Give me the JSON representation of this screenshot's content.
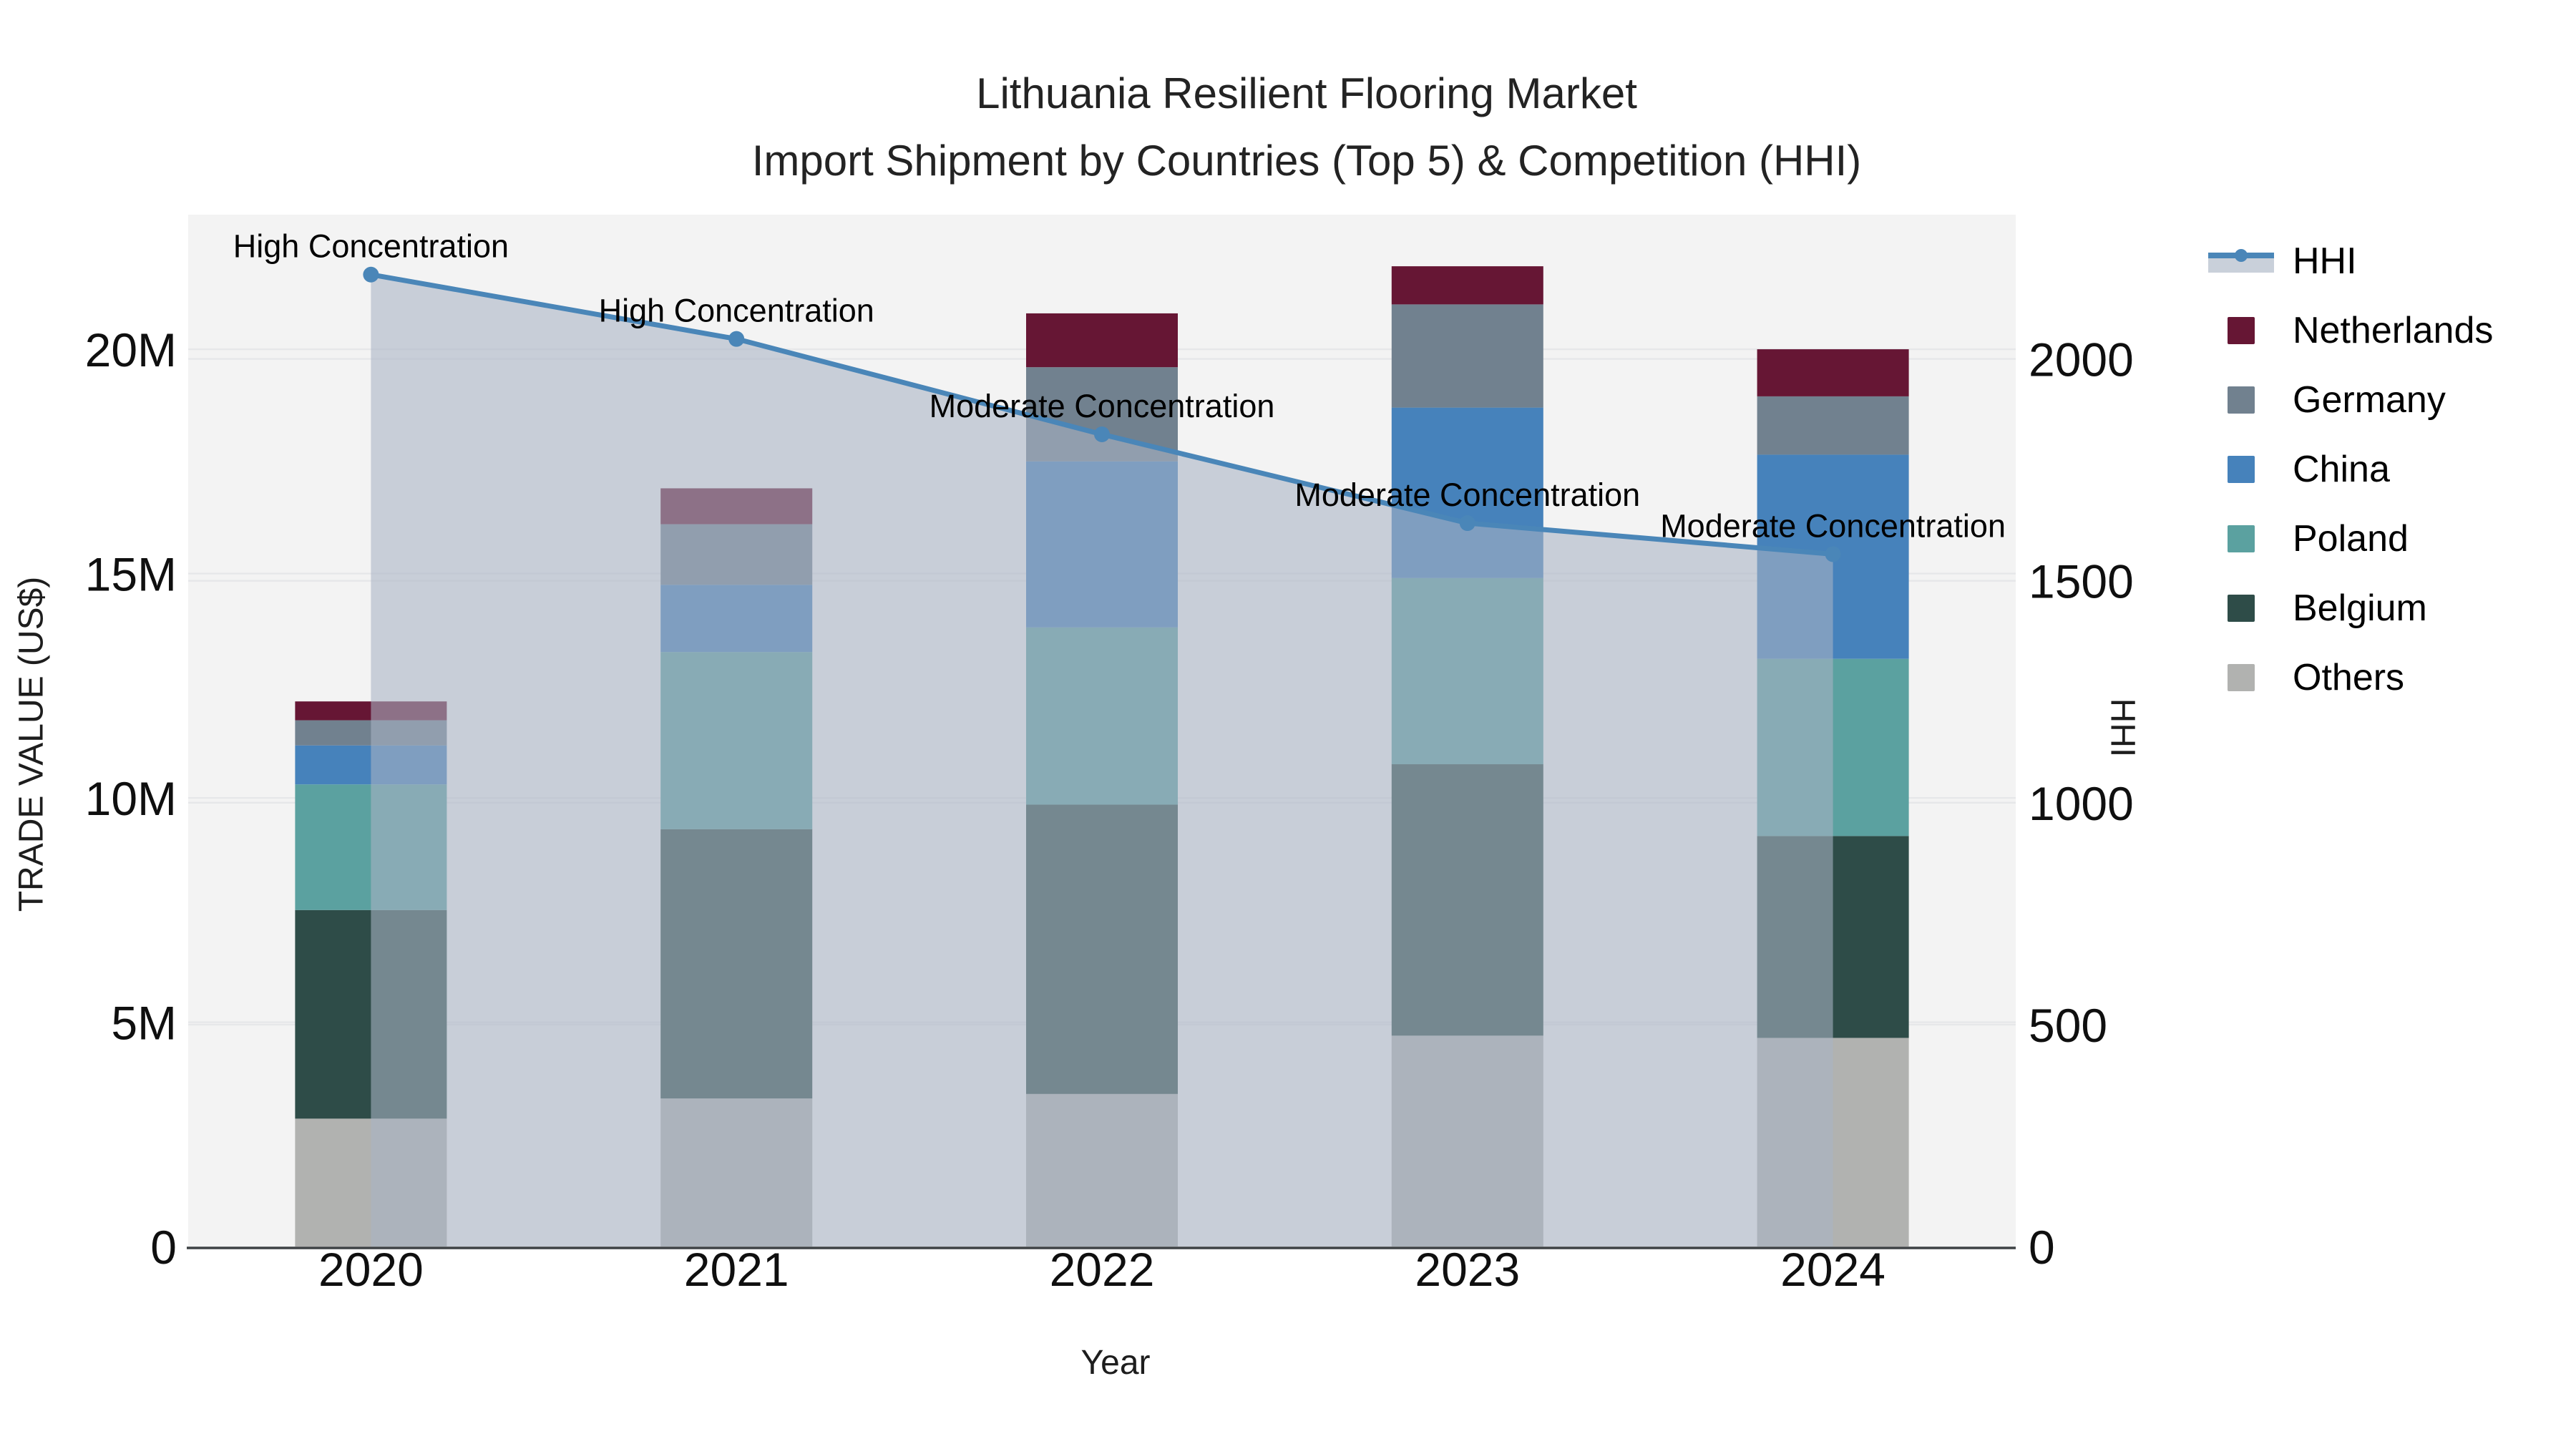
{
  "title": {
    "line1": "Lithuania Resilient Flooring Market",
    "line2": "Import Shipment by Countries (Top 5) & Competition (HHI)"
  },
  "axes": {
    "x": {
      "title": "Year",
      "categories": [
        "2020",
        "2021",
        "2022",
        "2023",
        "2024"
      ]
    },
    "left": {
      "title": "TRADE VALUE (US$)",
      "tick_labels": [
        "0",
        "5M",
        "10M",
        "15M",
        "20M"
      ],
      "tick_values": [
        0,
        5,
        10,
        15,
        20
      ]
    },
    "right": {
      "title": "HHI",
      "tick_labels": [
        "0",
        "500",
        "1000",
        "1500",
        "2000"
      ],
      "tick_values": [
        0,
        500,
        1000,
        1500,
        2000
      ]
    }
  },
  "legend": {
    "items": [
      {
        "label": "HHI",
        "type": "line-area",
        "line_color": "#4a86b8",
        "band_color": "#c9d0da"
      },
      {
        "label": "Netherlands",
        "type": "swatch",
        "color": "#661634"
      },
      {
        "label": "Germany",
        "type": "swatch",
        "color": "#71818f"
      },
      {
        "label": "China",
        "type": "swatch",
        "color": "#4682bb"
      },
      {
        "label": "Poland",
        "type": "swatch",
        "color": "#5ba1a0"
      },
      {
        "label": "Belgium",
        "type": "swatch",
        "color": "#2e4c48"
      },
      {
        "label": "Others",
        "type": "swatch",
        "color": "#b1b2b0"
      }
    ]
  },
  "chart_data": {
    "type": "combo: stacked bar (left axis) + line with area fill (right axis)",
    "title": "Lithuania Resilient Flooring Market — Import Shipment by Countries (Top 5) & Competition (HHI)",
    "categories": [
      "2020",
      "2021",
      "2022",
      "2023",
      "2024"
    ],
    "bar_unit": "US$ millions",
    "stack_order_bottom_to_top": [
      "Others",
      "Belgium",
      "Poland",
      "China",
      "Germany",
      "Netherlands"
    ],
    "series": [
      {
        "name": "Others",
        "color": "#b1b2b0",
        "values": [
          2.85,
          3.3,
          3.4,
          4.7,
          4.65
        ]
      },
      {
        "name": "Belgium",
        "color": "#2e4c48",
        "values": [
          4.65,
          6.0,
          6.45,
          6.05,
          4.5
        ]
      },
      {
        "name": "Poland",
        "color": "#5ba1a0",
        "values": [
          2.8,
          3.95,
          3.95,
          4.15,
          3.95
        ]
      },
      {
        "name": "China",
        "color": "#4682bb",
        "values": [
          0.87,
          1.5,
          3.7,
          3.8,
          4.55
        ]
      },
      {
        "name": "Germany",
        "color": "#71818f",
        "values": [
          0.56,
          1.35,
          2.1,
          2.3,
          1.3
        ]
      },
      {
        "name": "Netherlands",
        "color": "#661634",
        "values": [
          0.42,
          0.8,
          1.2,
          0.85,
          1.05
        ]
      }
    ],
    "bar_totals_musd": [
      12.15,
      16.9,
      20.8,
      21.85,
      20.0
    ],
    "hhi": {
      "name": "HHI",
      "color": "#4a86b8",
      "fill": "rgba(168,180,197,0.58)",
      "values": [
        2190,
        2045,
        1830,
        1630,
        1560
      ],
      "annotations": [
        "High Concentration",
        "High Concentration",
        "Moderate Concentration",
        "Moderate Concentration",
        "Moderate Concentration"
      ]
    },
    "left_axis": {
      "label": "TRADE VALUE (US$)",
      "range": [
        0,
        23
      ]
    },
    "right_axis": {
      "label": "HHI",
      "range": [
        0,
        2325
      ]
    },
    "xlabel": "Year",
    "plot_bg": "#f3f3f3",
    "grid_color": "#e6e7e9",
    "axis_line_color": "#3d4144",
    "grid": true,
    "legend_position": "right"
  },
  "styles": {
    "accent": "#4a86b8",
    "text_color": "#111111",
    "background": "#ffffff"
  }
}
